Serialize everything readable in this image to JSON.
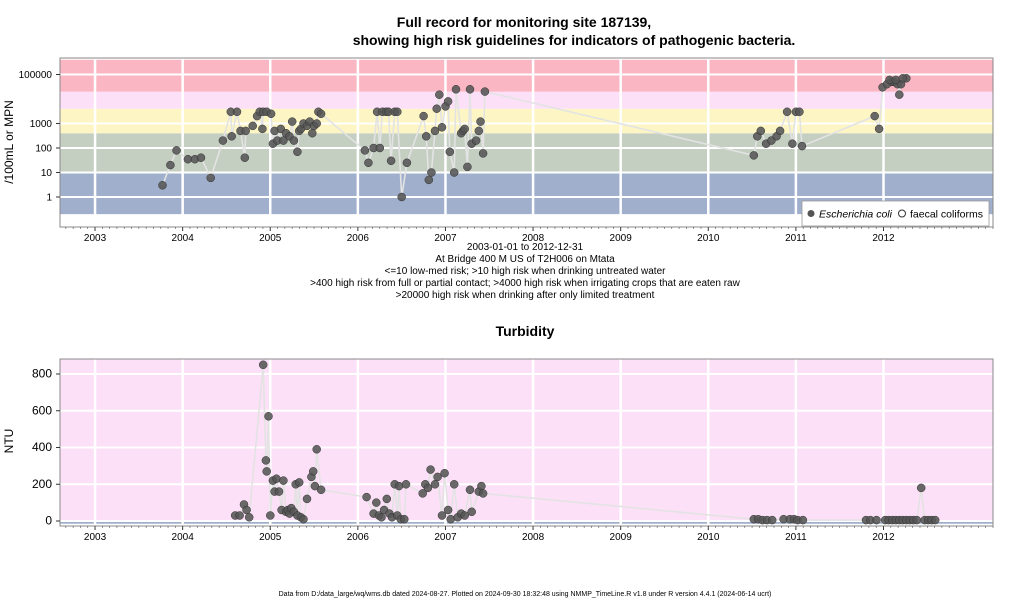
{
  "chart_data": [
    {
      "type": "scatter",
      "title_line1": "Full record for monitoring site 187139,",
      "title_line2": "showing high risk guidelines for indicators of pathogenic bacteria.",
      "ylabel": "/100mL or MPN",
      "y_scale": "log",
      "ylim": [
        0.2,
        400000
      ],
      "y_ticks": [
        {
          "value": 1,
          "label": "1"
        },
        {
          "value": 10,
          "label": "10"
        },
        {
          "value": 100,
          "label": "100"
        },
        {
          "value": 1000,
          "label": "1000"
        },
        {
          "value": 100000,
          "label": "100000"
        }
      ],
      "xlim": [
        2002.6,
        2013.25
      ],
      "x_ticks": [
        "2003",
        "2004",
        "2005",
        "2006",
        "2007",
        "2008",
        "2009",
        "2010",
        "2011",
        "2012"
      ],
      "bands": [
        {
          "from": 0.2,
          "to": 10,
          "color": "#a0b0cc"
        },
        {
          "from": 10,
          "to": 400,
          "color": "#c4cfc2"
        },
        {
          "from": 400,
          "to": 4000,
          "color": "#fdf6c4"
        },
        {
          "from": 4000,
          "to": 20000,
          "color": "#fce0f7"
        },
        {
          "from": 20000,
          "to": 400000,
          "color": "#fbb6c3"
        }
      ],
      "caption_lines": [
        "2003-01-01 to 2012-12-31",
        "At Bridge 400 M US of T2H006 on Mtata",
        "<=10 low-med risk; >10 high risk when drinking untreated water",
        ">400 high risk from full or partial contact; >4000 high risk when irrigating crops that are eaten raw",
        ">20000 high risk when drinking after only limited treatment"
      ],
      "legend": {
        "position": "bottom-right",
        "entries": [
          {
            "name": "Escherichia coli",
            "marker": "filled",
            "color": "#555555"
          },
          {
            "name": "faecal coliforms",
            "marker": "open",
            "color": "#333333"
          }
        ]
      },
      "series": [
        {
          "name": "Escherichia coli",
          "points": [
            [
              2003.77,
              3
            ],
            [
              2003.86,
              20
            ],
            [
              2003.93,
              80
            ],
            [
              2004.06,
              35
            ],
            [
              2004.14,
              35
            ],
            [
              2004.21,
              40
            ],
            [
              2004.32,
              6
            ],
            [
              2004.46,
              200
            ],
            [
              2004.55,
              3000
            ],
            [
              2004.56,
              300
            ],
            [
              2004.62,
              3000
            ],
            [
              2004.66,
              500
            ],
            [
              2004.71,
              40
            ],
            [
              2004.72,
              500
            ],
            [
              2004.8,
              800
            ],
            [
              2004.85,
              2000
            ],
            [
              2004.88,
              3000
            ],
            [
              2004.91,
              600
            ],
            [
              2004.92,
              3000
            ],
            [
              2004.96,
              3000
            ],
            [
              2005.01,
              2500
            ],
            [
              2005.03,
              150
            ],
            [
              2005.05,
              500
            ],
            [
              2005.08,
              200
            ],
            [
              2005.12,
              600
            ],
            [
              2005.15,
              200
            ],
            [
              2005.18,
              400
            ],
            [
              2005.22,
              300
            ],
            [
              2005.25,
              1200
            ],
            [
              2005.27,
              200
            ],
            [
              2005.31,
              70
            ],
            [
              2005.33,
              500
            ],
            [
              2005.35,
              600
            ],
            [
              2005.38,
              1000
            ],
            [
              2005.42,
              800
            ],
            [
              2005.45,
              1200
            ],
            [
              2005.48,
              400
            ],
            [
              2005.5,
              800
            ],
            [
              2005.53,
              1000
            ],
            [
              2005.55,
              3000
            ],
            [
              2005.58,
              2500
            ],
            [
              2006.08,
              80
            ],
            [
              2006.12,
              25
            ],
            [
              2006.18,
              100
            ],
            [
              2006.22,
              3000
            ],
            [
              2006.25,
              100
            ],
            [
              2006.28,
              3000
            ],
            [
              2006.32,
              3000
            ],
            [
              2006.35,
              3000
            ],
            [
              2006.38,
              30
            ],
            [
              2006.42,
              3000
            ],
            [
              2006.45,
              3000
            ],
            [
              2006.5,
              1
            ],
            [
              2006.56,
              25
            ],
            [
              2006.75,
              2000
            ],
            [
              2006.78,
              300
            ],
            [
              2006.81,
              5
            ],
            [
              2006.84,
              10
            ],
            [
              2006.88,
              500
            ],
            [
              2006.9,
              4000
            ],
            [
              2006.93,
              15000
            ],
            [
              2006.96,
              700
            ],
            [
              2007.0,
              5000
            ],
            [
              2007.03,
              8000
            ],
            [
              2007.05,
              70
            ],
            [
              2007.1,
              10
            ],
            [
              2007.12,
              25000
            ],
            [
              2007.18,
              400
            ],
            [
              2007.2,
              500
            ],
            [
              2007.22,
              600
            ],
            [
              2007.25,
              17
            ],
            [
              2007.28,
              25000
            ],
            [
              2007.3,
              150
            ],
            [
              2007.35,
              200
            ],
            [
              2007.38,
              500
            ],
            [
              2007.4,
              1200
            ],
            [
              2007.43,
              60
            ],
            [
              2007.45,
              20000
            ],
            [
              2010.52,
              50
            ],
            [
              2010.56,
              300
            ],
            [
              2010.6,
              500
            ],
            [
              2010.66,
              150
            ],
            [
              2010.72,
              200
            ],
            [
              2010.78,
              300
            ],
            [
              2010.82,
              500
            ],
            [
              2010.9,
              3000
            ],
            [
              2010.96,
              150
            ],
            [
              2011.0,
              3000
            ],
            [
              2011.04,
              3000
            ],
            [
              2011.07,
              120
            ],
            [
              2011.9,
              2000
            ],
            [
              2011.99,
              30000
            ],
            [
              2012.09,
              50000
            ],
            [
              2012.12,
              50000
            ],
            [
              2012.16,
              40000
            ],
            [
              2012.2,
              40000
            ],
            [
              2012.26,
              70000
            ],
            [
              2011.95,
              600
            ],
            [
              2012.04,
              40000
            ],
            [
              2012.07,
              60000
            ],
            [
              2012.14,
              60000
            ],
            [
              2012.18,
              15000
            ],
            [
              2012.22,
              70000
            ]
          ]
        }
      ]
    },
    {
      "type": "scatter",
      "title": "Turbidity",
      "ylabel": "NTU",
      "ylim": [
        -15,
        880
      ],
      "y_ticks": [
        0,
        200,
        400,
        600,
        800
      ],
      "xlim": [
        2002.6,
        2013.25
      ],
      "x_ticks": [
        "2003",
        "2004",
        "2005",
        "2006",
        "2007",
        "2008",
        "2009",
        "2010",
        "2011",
        "2012"
      ],
      "bands": [
        {
          "from": -15,
          "to": 5,
          "color": "#a0b0cc"
        },
        {
          "from": 5,
          "to": 880,
          "color": "#fce0f7"
        }
      ],
      "series": [
        {
          "name": "Turbidity",
          "points": [
            [
              2004.6,
              30
            ],
            [
              2004.65,
              30
            ],
            [
              2004.7,
              90
            ],
            [
              2004.73,
              60
            ],
            [
              2004.76,
              20
            ],
            [
              2004.92,
              850
            ],
            [
              2004.95,
              330
            ],
            [
              2004.96,
              270
            ],
            [
              2004.98,
              570
            ],
            [
              2005.0,
              30
            ],
            [
              2005.03,
              220
            ],
            [
              2005.05,
              160
            ],
            [
              2005.07,
              230
            ],
            [
              2005.1,
              160
            ],
            [
              2005.13,
              60
            ],
            [
              2005.15,
              220
            ],
            [
              2005.18,
              50
            ],
            [
              2005.2,
              60
            ],
            [
              2005.22,
              40
            ],
            [
              2005.24,
              70
            ],
            [
              2005.27,
              50
            ],
            [
              2005.29,
              200
            ],
            [
              2005.31,
              30
            ],
            [
              2005.33,
              210
            ],
            [
              2005.35,
              20
            ],
            [
              2005.38,
              10
            ],
            [
              2005.42,
              120
            ],
            [
              2005.47,
              240
            ],
            [
              2005.49,
              270
            ],
            [
              2005.51,
              190
            ],
            [
              2005.53,
              390
            ],
            [
              2005.58,
              170
            ],
            [
              2006.1,
              130
            ],
            [
              2006.18,
              40
            ],
            [
              2006.21,
              100
            ],
            [
              2006.24,
              30
            ],
            [
              2006.27,
              20
            ],
            [
              2006.3,
              60
            ],
            [
              2006.33,
              120
            ],
            [
              2006.36,
              40
            ],
            [
              2006.39,
              20
            ],
            [
              2006.42,
              200
            ],
            [
              2006.45,
              30
            ],
            [
              2006.47,
              190
            ],
            [
              2006.49,
              10
            ],
            [
              2006.53,
              10
            ],
            [
              2006.55,
              200
            ],
            [
              2006.74,
              150
            ],
            [
              2006.77,
              200
            ],
            [
              2006.8,
              180
            ],
            [
              2006.83,
              280
            ],
            [
              2006.88,
              200
            ],
            [
              2006.91,
              240
            ],
            [
              2006.96,
              30
            ],
            [
              2006.99,
              260
            ],
            [
              2007.03,
              60
            ],
            [
              2007.06,
              10
            ],
            [
              2007.1,
              200
            ],
            [
              2007.14,
              20
            ],
            [
              2007.18,
              40
            ],
            [
              2007.22,
              30
            ],
            [
              2007.28,
              170
            ],
            [
              2007.3,
              50
            ],
            [
              2007.38,
              160
            ],
            [
              2007.41,
              190
            ],
            [
              2007.43,
              150
            ],
            [
              2010.52,
              10
            ],
            [
              2010.57,
              10
            ],
            [
              2010.62,
              5
            ],
            [
              2010.67,
              5
            ],
            [
              2010.73,
              5
            ],
            [
              2010.86,
              10
            ],
            [
              2010.93,
              10
            ],
            [
              2010.98,
              10
            ],
            [
              2011.02,
              5
            ],
            [
              2011.08,
              5
            ],
            [
              2011.8,
              5
            ],
            [
              2011.85,
              5
            ],
            [
              2011.92,
              5
            ],
            [
              2012.02,
              5
            ],
            [
              2012.06,
              5
            ],
            [
              2012.1,
              5
            ],
            [
              2012.14,
              5
            ],
            [
              2012.18,
              5
            ],
            [
              2012.22,
              5
            ],
            [
              2012.26,
              5
            ],
            [
              2012.3,
              5
            ],
            [
              2012.34,
              5
            ],
            [
              2012.38,
              5
            ],
            [
              2012.43,
              180
            ],
            [
              2012.47,
              5
            ],
            [
              2012.51,
              5
            ],
            [
              2012.55,
              5
            ],
            [
              2012.59,
              5
            ]
          ]
        }
      ]
    }
  ],
  "footer": "Data from D:/data_large/wq/wms.db dated 2024-08-27. Plotted on 2024-09-30 18:32:48 using NMMP_TimeLine.R v1.8 under R version 4.4.1 (2024-06-14 ucrt)"
}
